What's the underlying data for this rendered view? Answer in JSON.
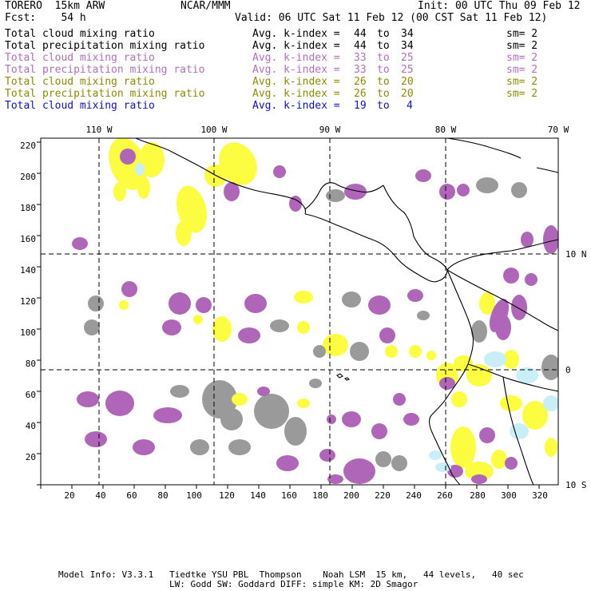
{
  "header": {
    "model": "TORERO  15km ARW",
    "org": "NCAR/MMM",
    "init": "Init: 00 UTC Thu 09 Feb 12",
    "fcst": "Fcst:    54 h",
    "valid": "Valid: 06 UTC Sat 11 Feb 12 (00 CST Sat 11 Feb 12)"
  },
  "legend": [
    {
      "field": "Total cloud mixing ratio",
      "stat": "Avg. k-index = ",
      "hi": "44",
      "to": "to",
      "lo": "34",
      "sm": "sm= 2",
      "color": "#000000"
    },
    {
      "field": "Total precipitation mixing ratio",
      "stat": "Avg. k-index = ",
      "hi": "44",
      "to": "to",
      "lo": "34",
      "sm": "sm= 2",
      "color": "#000000"
    },
    {
      "field": "Total cloud mixing ratio",
      "stat": "Avg. k-index = ",
      "hi": "33",
      "to": "to",
      "lo": "25",
      "sm": "sm= 2",
      "color": "#b66dbe"
    },
    {
      "field": "Total precipitation mixing ratio",
      "stat": "Avg. k-index = ",
      "hi": "33",
      "to": "to",
      "lo": "25",
      "sm": "sm= 2",
      "color": "#b66dbe"
    },
    {
      "field": "Total cloud mixing ratio",
      "stat": "Avg. k-index = ",
      "hi": "26",
      "to": "to",
      "lo": "20",
      "sm": "sm= 2",
      "color": "#8c8c00"
    },
    {
      "field": "Total precipitation mixing ratio",
      "stat": "Avg. k-index = ",
      "hi": "26",
      "to": "to",
      "lo": "20",
      "sm": "sm= 2",
      "color": "#8c8c00"
    },
    {
      "field": "Total cloud mixing ratio",
      "stat": "Avg. k-index = ",
      "hi": "19",
      "to": "to",
      "lo": "4",
      "sm": "",
      "color": "#1010c8"
    }
  ],
  "map": {
    "lon_labels": [
      "110 W",
      "100 W",
      "90 W",
      "80 W",
      "70 W"
    ],
    "lat_labels": [
      "10 N",
      "0",
      "10 S"
    ],
    "x_ticks": [
      "20",
      "40",
      "60",
      "80",
      "100",
      "120",
      "140",
      "160",
      "180",
      "200",
      "220",
      "240",
      "260",
      "280",
      "300",
      "320"
    ],
    "y_ticks": [
      "20",
      "40",
      "60",
      "80",
      "100",
      "120",
      "140",
      "160",
      "180",
      "200",
      "220"
    ],
    "colors": {
      "gray": "#9a9a9a",
      "purple": "#b066b8",
      "yellow": "#fcfc40",
      "lightblue": "#c8eef8"
    }
  },
  "footer": {
    "line1": "Model Info: V3.3.1   Tiedtke YSU PBL  Thompson    Noah LSM  15 km,   44 levels,   40 sec",
    "line2": "LW: Godd SW: Goddard DIFF: simple KM: 2D Smagor"
  }
}
